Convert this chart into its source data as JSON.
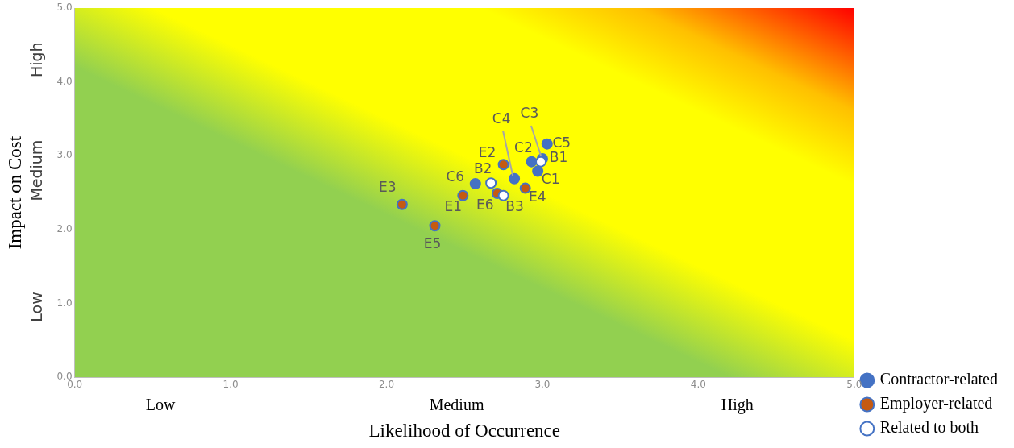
{
  "chart_data": {
    "type": "scatter",
    "xlabel": "Likelihood of Occurrence",
    "ylabel": "Impact on Cost",
    "xlim": [
      0,
      5
    ],
    "ylim": [
      0,
      5
    ],
    "xticks": [
      {
        "value": 0,
        "label": "0.0"
      },
      {
        "value": 1,
        "label": "1.0"
      },
      {
        "value": 2,
        "label": "2.0"
      },
      {
        "value": 3,
        "label": "3.0"
      },
      {
        "value": 4,
        "label": "4.0"
      },
      {
        "value": 5,
        "label": "5.0"
      }
    ],
    "yticks": [
      {
        "value": 0,
        "label": "0.0"
      },
      {
        "value": 1,
        "label": "1.0"
      },
      {
        "value": 2,
        "label": "2.0"
      },
      {
        "value": 3,
        "label": "3.0"
      },
      {
        "value": 4,
        "label": "4.0"
      },
      {
        "value": 5,
        "label": "5.0"
      }
    ],
    "grid": false,
    "legend": "right",
    "marker": "circle",
    "series": [
      {
        "name": "Contractor-related",
        "color": "#4472c4",
        "x": [
          3.03,
          2.93,
          3.0,
          2.97,
          2.82,
          2.57
        ],
        "values": [
          3.16,
          2.92,
          2.96,
          2.79,
          2.69,
          2.62
        ]
      },
      {
        "name": "Employer-related",
        "color": "#c55a11",
        "x": [
          2.75,
          2.89,
          2.71,
          2.49,
          2.1,
          2.31
        ],
        "values": [
          2.88,
          2.56,
          2.49,
          2.46,
          2.34,
          2.05
        ]
      },
      {
        "name": "Related to both",
        "color": "#ffffff",
        "x": [
          2.67,
          2.99,
          2.75
        ],
        "values": [
          2.63,
          2.92,
          2.46
        ]
      }
    ],
    "annotations": [
      {
        "text": "C5",
        "x": 3.03,
        "y": 3.16
      },
      {
        "text": "C2",
        "x": 2.93,
        "y": 2.92
      },
      {
        "text": "C3",
        "x": 3.0,
        "y": 2.96
      },
      {
        "text": "C1",
        "x": 2.97,
        "y": 2.79
      },
      {
        "text": "C4",
        "x": 2.82,
        "y": 2.69
      },
      {
        "text": "C6",
        "x": 2.57,
        "y": 2.62
      },
      {
        "text": "E2",
        "x": 2.75,
        "y": 2.88
      },
      {
        "text": "E4",
        "x": 2.89,
        "y": 2.56
      },
      {
        "text": "E6",
        "x": 2.71,
        "y": 2.49
      },
      {
        "text": "E1",
        "x": 2.49,
        "y": 2.46
      },
      {
        "text": "E3",
        "x": 2.1,
        "y": 2.34
      },
      {
        "text": "E5",
        "x": 2.31,
        "y": 2.05
      },
      {
        "text": "B2",
        "x": 2.67,
        "y": 2.63
      },
      {
        "text": "B1",
        "x": 2.99,
        "y": 2.92
      },
      {
        "text": "B3",
        "x": 2.75,
        "y": 2.46
      },
      "Low",
      "Medium",
      "High",
      "Low",
      "Medium",
      "High"
    ]
  }
}
